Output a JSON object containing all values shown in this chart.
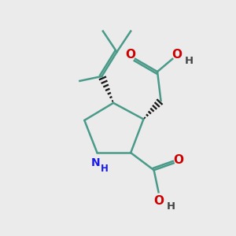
{
  "bg_color": "#ebebeb",
  "ring_color": "#4a9a8a",
  "N_color": "#1a1aee",
  "O_color": "#cc0000",
  "bond_color": "#4a9a8a",
  "black_color": "#1a1a1a",
  "line_width": 1.8,
  "figsize": [
    3.0,
    3.0
  ],
  "dpi": 100,
  "xlim": [
    0,
    10
  ],
  "ylim": [
    0,
    10
  ]
}
